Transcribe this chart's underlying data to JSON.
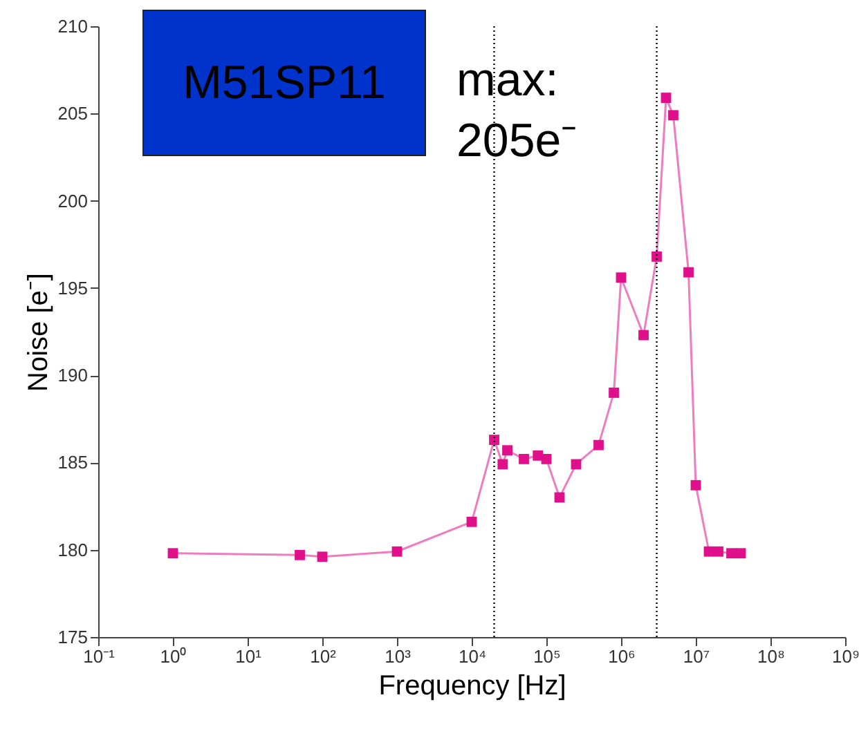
{
  "chart_data": {
    "type": "line",
    "xlabel": "Frequency [Hz]",
    "ylabel": "Noise [e⁻]",
    "x": [
      1,
      50,
      100,
      1000,
      10000,
      20000,
      26000,
      30000,
      50000,
      77000,
      100000,
      150000,
      250000,
      500000,
      800000,
      1000000,
      2000000,
      3000000,
      4000000,
      5000000,
      8000000,
      10000000,
      15000000,
      20000000,
      30000000,
      40000000
    ],
    "series": [
      {
        "color": "#e0108a",
        "values": [
          179.8,
          179.7,
          179.6,
          179.9,
          181.6,
          186.3,
          184.9,
          185.7,
          185.2,
          185.4,
          185.2,
          183.0,
          184.9,
          186.0,
          189.0,
          195.6,
          192.3,
          196.8,
          205.9,
          204.9,
          195.9,
          183.7,
          179.9,
          179.9,
          179.8,
          179.8
        ]
      }
    ],
    "log": "x",
    "marker": "square",
    "line_style": "solid",
    "xlim": [
      0.1,
      1000000000
    ],
    "xticks": [
      {
        "value": 0.1,
        "label": "10⁻¹"
      },
      {
        "value": 1,
        "label": "10⁰"
      },
      {
        "value": 10,
        "label": "10¹"
      },
      {
        "value": 100,
        "label": "10²"
      },
      {
        "value": 1000,
        "label": "10³"
      },
      {
        "value": 10000,
        "label": "10⁴"
      },
      {
        "value": 100000,
        "label": "10⁵"
      },
      {
        "value": 1000000,
        "label": "10⁶"
      },
      {
        "value": 10000000,
        "label": "10⁷"
      },
      {
        "value": 100000000,
        "label": "10⁸"
      },
      {
        "value": 1000000000,
        "label": "10⁹"
      }
    ],
    "ylim": [
      175,
      210
    ],
    "yticks": [
      175,
      180,
      185,
      190,
      195,
      200,
      205,
      210
    ],
    "ref_lines": [
      {
        "axis": "x",
        "value": 20000,
        "color": "#000000",
        "line_style": "dotted"
      },
      {
        "axis": "x",
        "value": 3000000,
        "color": "#000000",
        "line_style": "dotted"
      }
    ],
    "annotations": [
      "M51SP11",
      "max: 205e⁻"
    ]
  }
}
